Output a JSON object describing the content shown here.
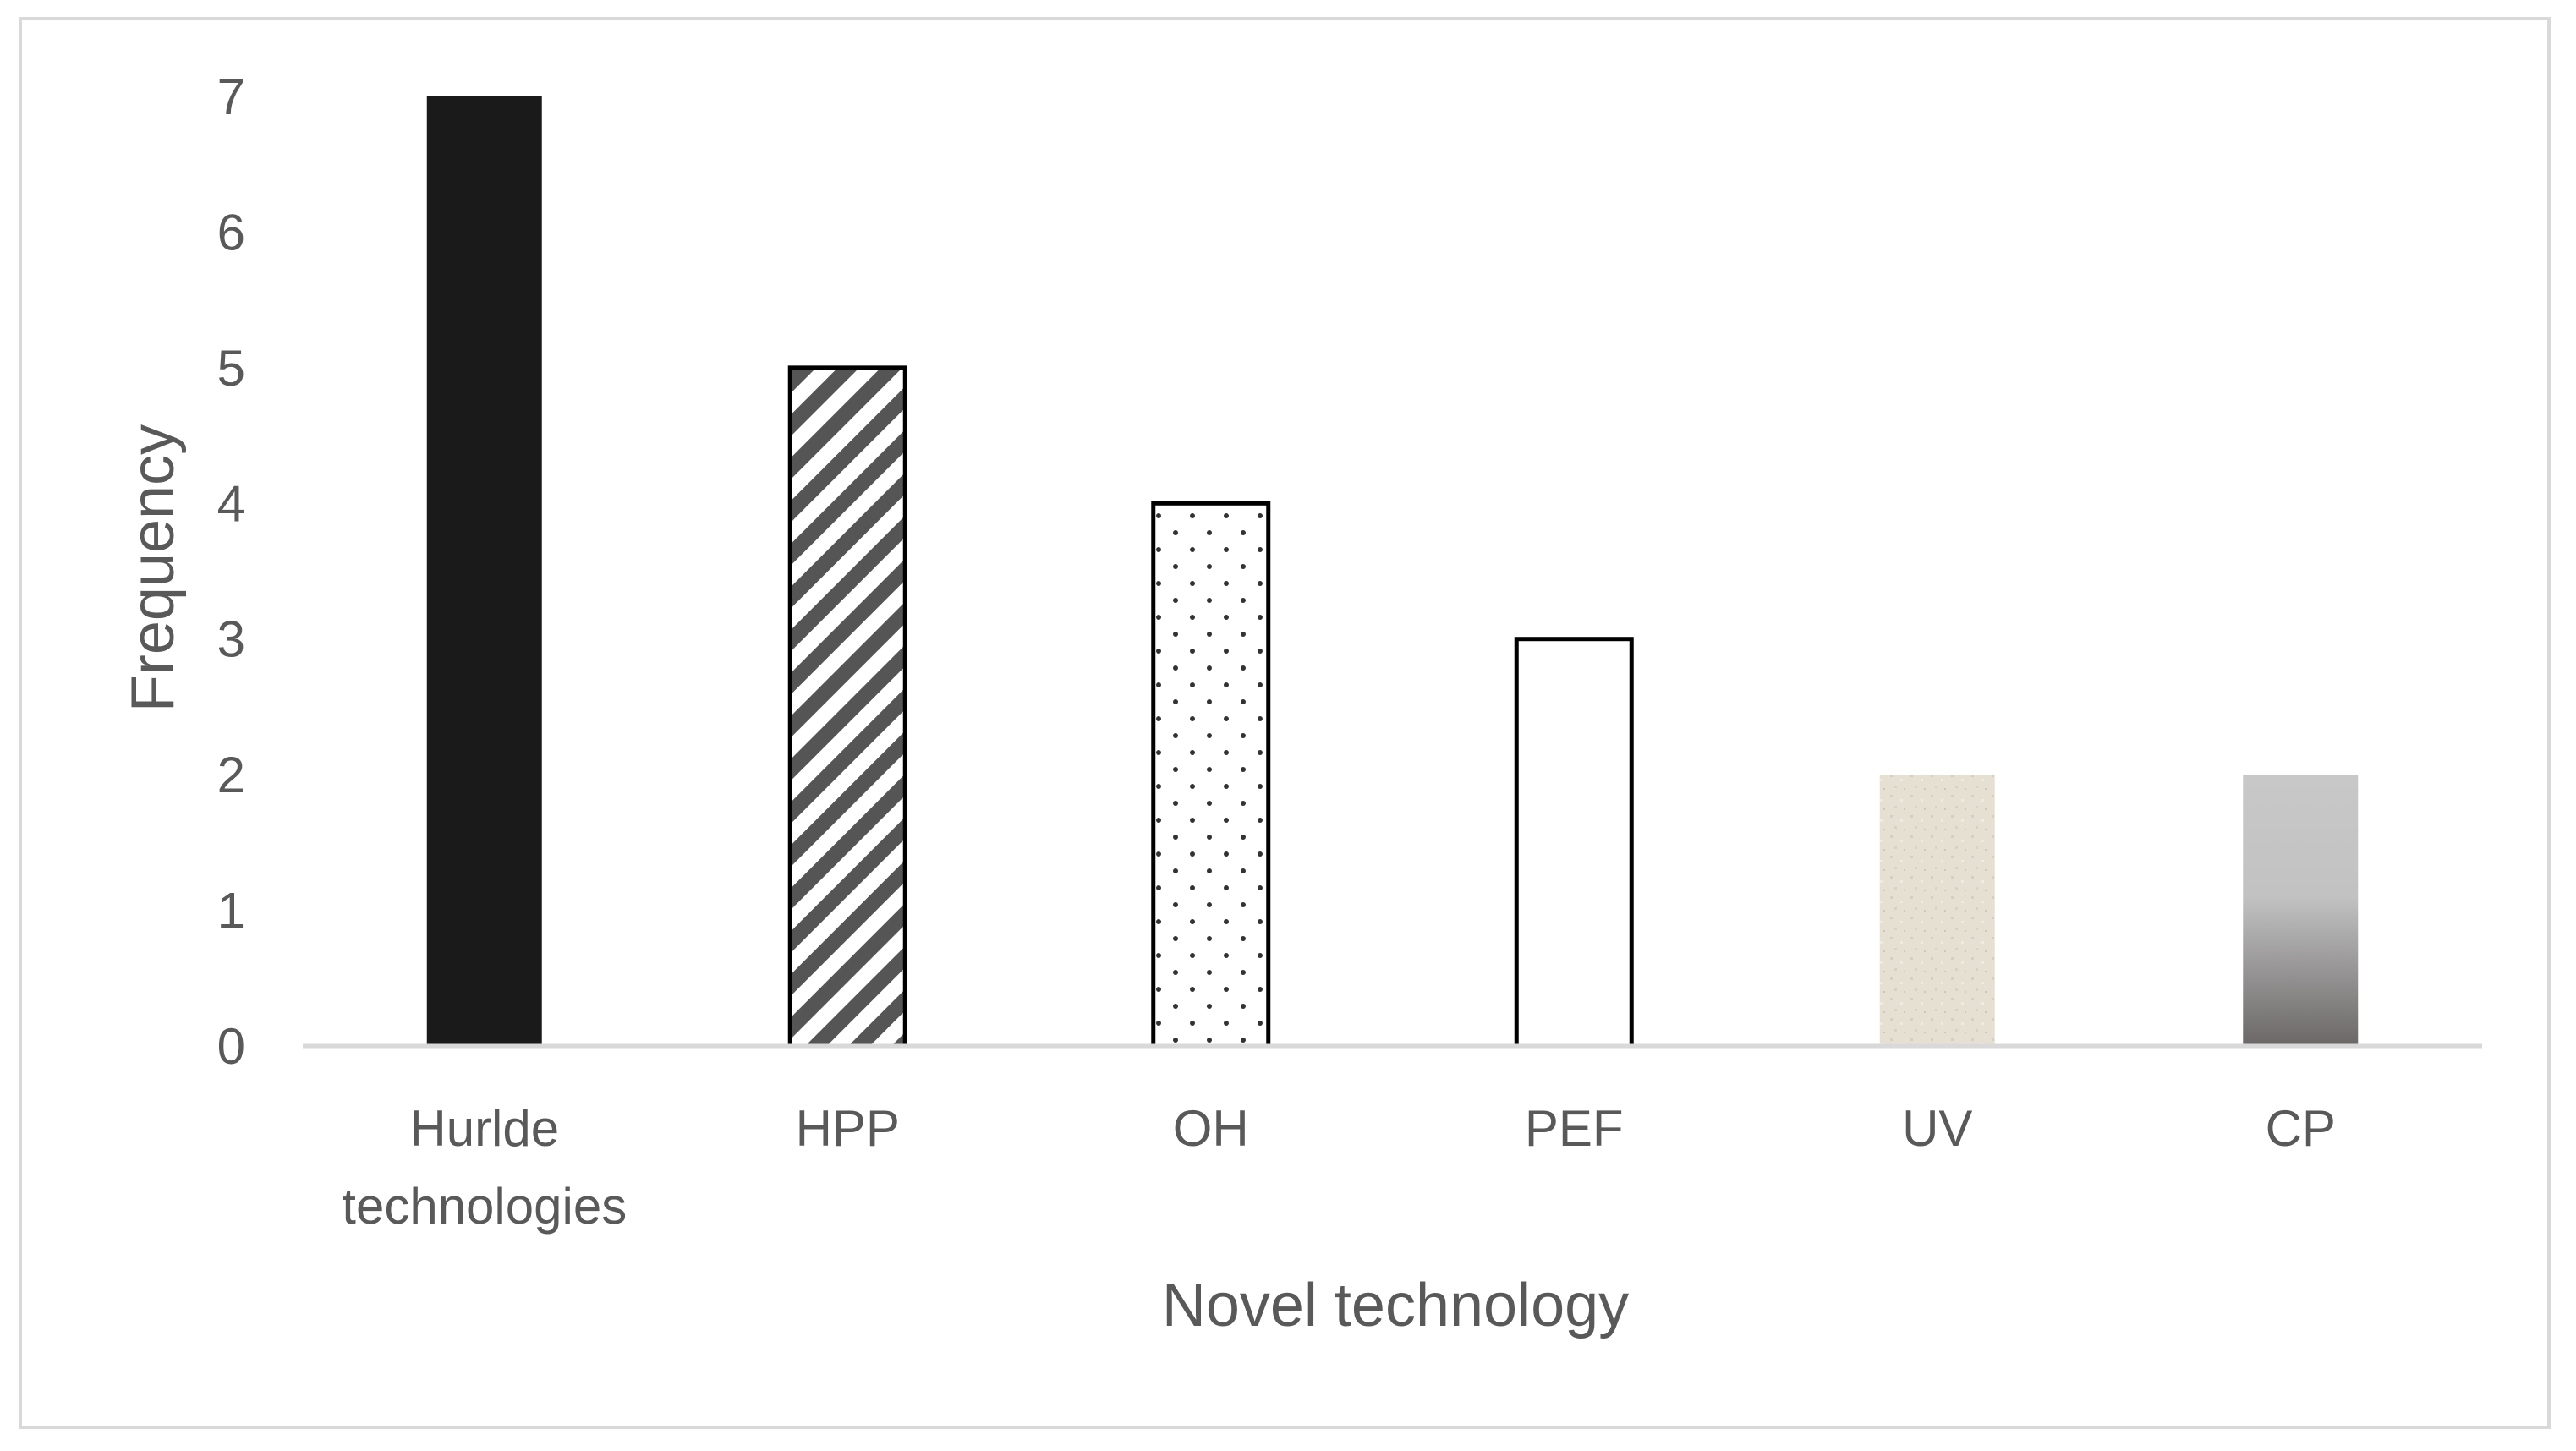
{
  "chart_data": {
    "type": "bar",
    "categories": [
      "Hurlde technologies",
      "HPP",
      "OH",
      "PEF",
      "UV",
      "CP"
    ],
    "category_lines": [
      [
        "Hurlde",
        "technologies"
      ],
      [
        "HPP"
      ],
      [
        "OH"
      ],
      [
        "PEF"
      ],
      [
        "UV"
      ],
      [
        "CP"
      ]
    ],
    "values": [
      7,
      5,
      4,
      3,
      2,
      2
    ],
    "title": "",
    "xlabel": "Novel technology",
    "ylabel": "Frequency",
    "ylim": [
      0,
      7
    ],
    "yticks": [
      "0",
      "1",
      "2",
      "3",
      "4",
      "5",
      "6",
      "7"
    ],
    "grid": false,
    "bar_fills": [
      "solid-black",
      "diagonal-stripes",
      "dots",
      "white-outline",
      "beige-texture",
      "gray-gradient"
    ],
    "colors": {
      "axis": "#d9d9d9",
      "text": "#595959",
      "solid": "#1a1a1a",
      "stripe": "#555555",
      "outline": "#000000",
      "beige": "#e6e0d3",
      "gradient_top": "#c8c8c8",
      "gradient_bottom": "#6b6767"
    }
  }
}
